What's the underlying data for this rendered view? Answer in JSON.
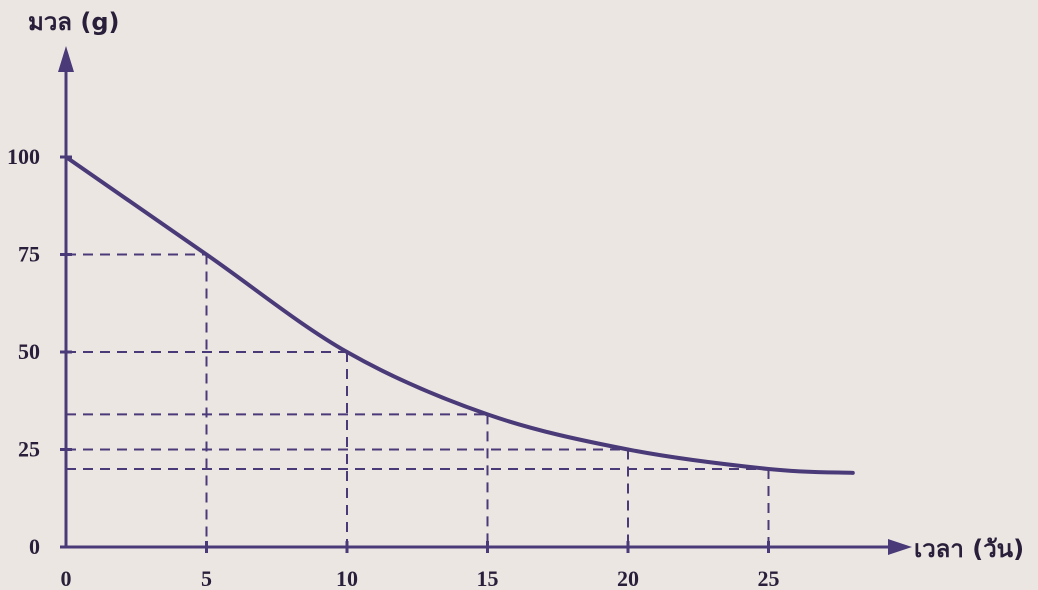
{
  "chart_data": {
    "type": "line",
    "xlabel": "เวลา (วัน)",
    "ylabel": "มวล (g)",
    "xlim": [
      0,
      28
    ],
    "ylim": [
      0,
      100
    ],
    "x_ticks": [
      "0",
      "5",
      "10",
      "15",
      "20",
      "25"
    ],
    "y_ticks": [
      "0",
      "25",
      "50",
      "75",
      "100"
    ],
    "grid": false,
    "series": [
      {
        "x": [
          0,
          5,
          10,
          15,
          20,
          25,
          28
        ],
        "y": [
          100,
          75,
          50,
          34,
          25,
          20,
          19
        ]
      }
    ],
    "reference_lines": [
      {
        "x": 5,
        "y": 75
      },
      {
        "x": 10,
        "y": 50
      },
      {
        "x": 15,
        "y": 34
      },
      {
        "x": 20,
        "y": 25
      },
      {
        "x": 25,
        "y": 20
      }
    ],
    "colors": {
      "curve": "#4b3a78",
      "axis": "#4b3a78",
      "text": "#2a1f3a",
      "background": "#ece6e3"
    }
  }
}
